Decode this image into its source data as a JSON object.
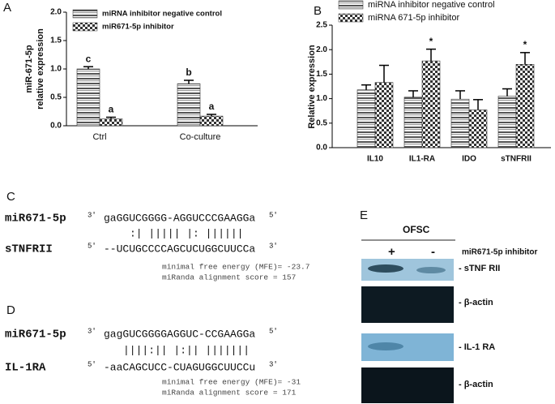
{
  "chart_data": [
    {
      "type": "bar",
      "panel": "A",
      "ylabel": [
        "miR-671-5p",
        "relative expression"
      ],
      "categories": [
        "Ctrl",
        "Co-culture"
      ],
      "series": [
        {
          "name": "miRNA inhibitor negative control",
          "color": "#555555",
          "values": [
            1.0,
            0.74
          ],
          "errors": [
            0.04,
            0.06
          ],
          "annotations": [
            "c",
            "b"
          ]
        },
        {
          "name": "miR671-5p inhibitor",
          "color": "#333333",
          "values": [
            0.12,
            0.17
          ],
          "errors": [
            0.03,
            0.03
          ],
          "annotations": [
            "a",
            "a"
          ]
        }
      ],
      "ylim": [
        0,
        2
      ],
      "yticks": [
        {
          "value": 0,
          "label": "0.0"
        },
        0.5,
        {
          "value": 1,
          "label": "1.0"
        },
        1.5,
        {
          "value": 2,
          "label": "2.0"
        }
      ]
    },
    {
      "type": "bar",
      "panel": "B",
      "ylabel": [
        "Relative expression"
      ],
      "categories": [
        "IL10",
        "IL1-RA",
        "IDO",
        "sTNFRII"
      ],
      "series": [
        {
          "name": "miRNA inhibitor negative control",
          "color": "#555555",
          "values": [
            1.18,
            1.03,
            0.99,
            1.05
          ],
          "errors": [
            0.1,
            0.13,
            0.17,
            0.15
          ],
          "annotations": [
            null,
            null,
            null,
            null
          ]
        },
        {
          "name": "miRNA 671-5p inhibitor",
          "color": "#333333",
          "values": [
            1.33,
            1.77,
            0.77,
            1.7
          ],
          "errors": [
            0.35,
            0.24,
            0.21,
            0.24
          ],
          "annotations": [
            null,
            "*",
            null,
            "*"
          ]
        }
      ],
      "ylim": [
        0,
        2.5
      ],
      "yticks": [
        {
          "value": 0,
          "label": "0.0"
        },
        0.5,
        {
          "value": 1,
          "label": "1.0"
        },
        1.5,
        {
          "value": 2,
          "label": "2.0"
        },
        2.5
      ]
    }
  ],
  "panel_c": {
    "label": "C",
    "mirna": "miR671-5p",
    "mirna_end3": "3'",
    "mirna_seq": "gaGGUCGGGG-AGGUCCCGAAGGa",
    "mirna_end5": "5'",
    "pairing": ":| ||||| |: ||||||",
    "target": "sTNFRII",
    "target_end5": "5'",
    "target_seq": "--UCUGCCCCAGCUCUGGCUUCCa",
    "target_end3": "3'",
    "mfe": "minimal free energy (MFE)= -23.7",
    "score": "miRanda alignment score = 157"
  },
  "panel_d": {
    "label": "D",
    "mirna": "miR671-5p",
    "mirna_end3": "3'",
    "mirna_seq": "gagGUCGGGGAGGUC-CCGAAGGa",
    "mirna_end5": "5'",
    "pairing": "||||:|| |:|| |||||||",
    "target": "IL-1RA",
    "target_end5": "5'",
    "target_seq": "-aaCAGCUCC-CUAGUGGCUUCCu",
    "target_end3": "3'",
    "mfe": "minimal free energy (MFE)= -31",
    "score": "miRanda alignment score = 171"
  },
  "panel_e": {
    "label": "E",
    "group": "OFSC",
    "plus": "+",
    "minus": "-",
    "treatment": "miR671-5p inhibitor",
    "bands": [
      "- sTNF RII",
      "- β-actin",
      "- IL-1 RA",
      "- β-actin"
    ]
  }
}
